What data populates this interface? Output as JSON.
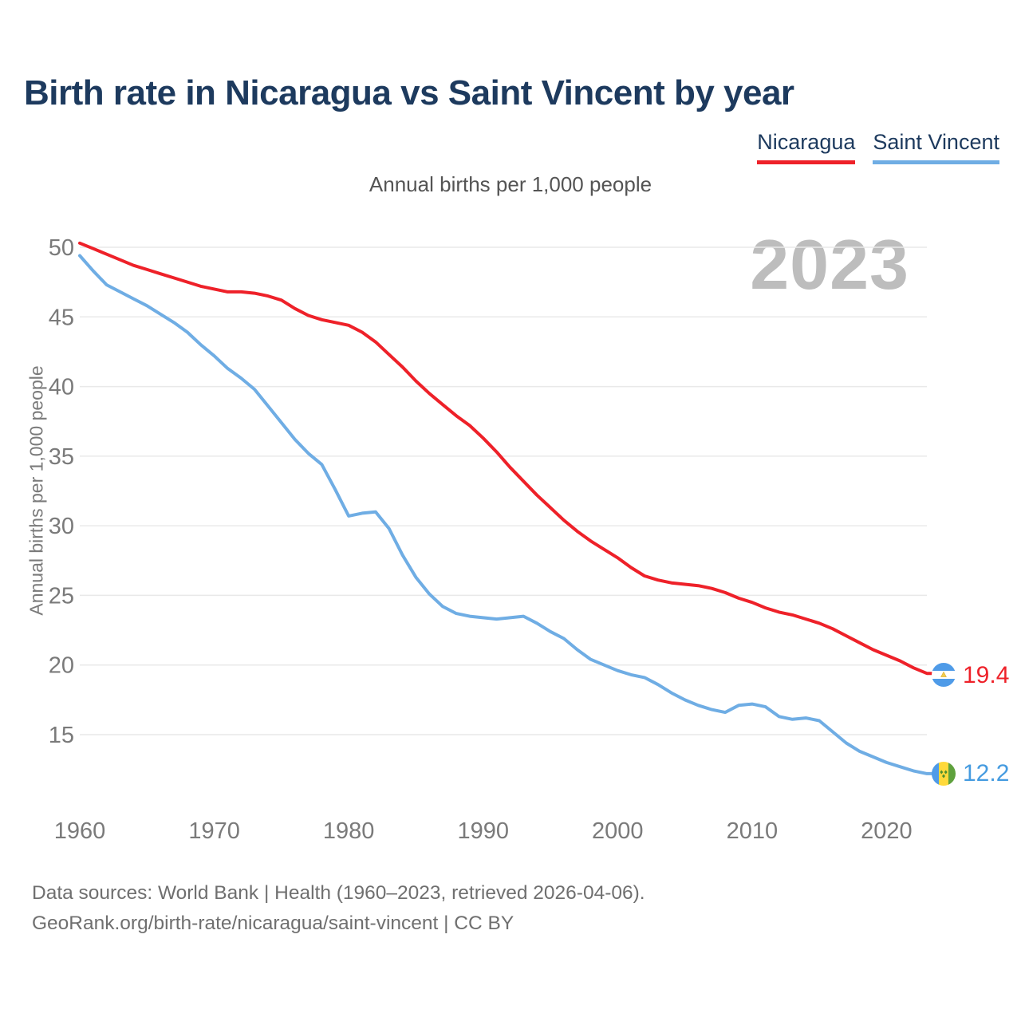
{
  "page": {
    "title": "Birth rate in Nicaragua vs Saint Vincent by year",
    "subtitle": "Annual births per 1,000 people",
    "watermark": "2023",
    "footer_line1": "Data sources: World Bank | Health (1960–2023, retrieved 2026-04-06).",
    "footer_line2": "GeoRank.org/birth-rate/nicaragua/saint-vincent | CC BY"
  },
  "chart_data": {
    "type": "line",
    "title": "Birth rate in Nicaragua vs Saint Vincent by year",
    "subtitle": "Annual births per 1,000 people",
    "xlabel": "",
    "ylabel": "Annual births per 1,000 people",
    "xlim": [
      1960,
      2023
    ],
    "ylim": [
      12,
      50.5
    ],
    "x_ticks": [
      1960,
      1970,
      1980,
      1990,
      2000,
      2010,
      2020
    ],
    "y_ticks": [
      50,
      45,
      40,
      35,
      30,
      25,
      20,
      15
    ],
    "grid": "horizontal",
    "legend_position": "top-right",
    "axis_text_color": "#7a7a7a",
    "grid_color": "#e9e9e9",
    "years": [
      1960,
      1961,
      1962,
      1963,
      1964,
      1965,
      1966,
      1967,
      1968,
      1969,
      1970,
      1971,
      1972,
      1973,
      1974,
      1975,
      1976,
      1977,
      1978,
      1979,
      1980,
      1981,
      1982,
      1983,
      1984,
      1985,
      1986,
      1987,
      1988,
      1989,
      1990,
      1991,
      1992,
      1993,
      1994,
      1995,
      1996,
      1997,
      1998,
      1999,
      2000,
      2001,
      2002,
      2003,
      2004,
      2005,
      2006,
      2007,
      2008,
      2009,
      2010,
      2011,
      2012,
      2013,
      2014,
      2015,
      2016,
      2017,
      2018,
      2019,
      2020,
      2021,
      2022,
      2023
    ],
    "series": [
      {
        "name": "Nicaragua",
        "color": "#ee2129",
        "end_label": "19.4",
        "end_value": 19.4,
        "flag": "nicaragua-flag",
        "values": [
          50.3,
          49.9,
          49.5,
          49.1,
          48.7,
          48.4,
          48.1,
          47.8,
          47.5,
          47.2,
          47.0,
          46.8,
          46.8,
          46.7,
          46.5,
          46.2,
          45.6,
          45.1,
          44.8,
          44.6,
          44.4,
          43.9,
          43.2,
          42.3,
          41.4,
          40.4,
          39.5,
          38.7,
          37.9,
          37.2,
          36.3,
          35.3,
          34.2,
          33.2,
          32.2,
          31.3,
          30.4,
          29.6,
          28.9,
          28.3,
          27.7,
          27.0,
          26.4,
          26.1,
          25.9,
          25.8,
          25.7,
          25.5,
          25.2,
          24.8,
          24.5,
          24.1,
          23.8,
          23.6,
          23.3,
          23.0,
          22.6,
          22.1,
          21.6,
          21.1,
          20.7,
          20.3,
          19.8,
          19.4
        ]
      },
      {
        "name": "Saint Vincent",
        "color": "#6fade4",
        "label_color": "#459be0",
        "end_label": "12.2",
        "end_value": 12.2,
        "flag": "saint-vincent-flag",
        "values": [
          49.4,
          48.3,
          47.3,
          46.8,
          46.3,
          45.8,
          45.2,
          44.6,
          43.9,
          43.0,
          42.2,
          41.3,
          40.6,
          39.8,
          38.6,
          37.4,
          36.2,
          35.2,
          34.4,
          32.6,
          30.7,
          30.9,
          31.0,
          29.8,
          27.9,
          26.3,
          25.1,
          24.2,
          23.7,
          23.5,
          23.4,
          23.3,
          23.4,
          23.5,
          23.0,
          22.4,
          21.9,
          21.1,
          20.4,
          20.0,
          19.6,
          19.3,
          19.1,
          18.6,
          18.0,
          17.5,
          17.1,
          16.8,
          16.6,
          17.1,
          17.2,
          17.0,
          16.3,
          16.1,
          16.2,
          16.0,
          15.2,
          14.4,
          13.8,
          13.4,
          13.0,
          12.7,
          12.4,
          12.2
        ]
      }
    ]
  }
}
